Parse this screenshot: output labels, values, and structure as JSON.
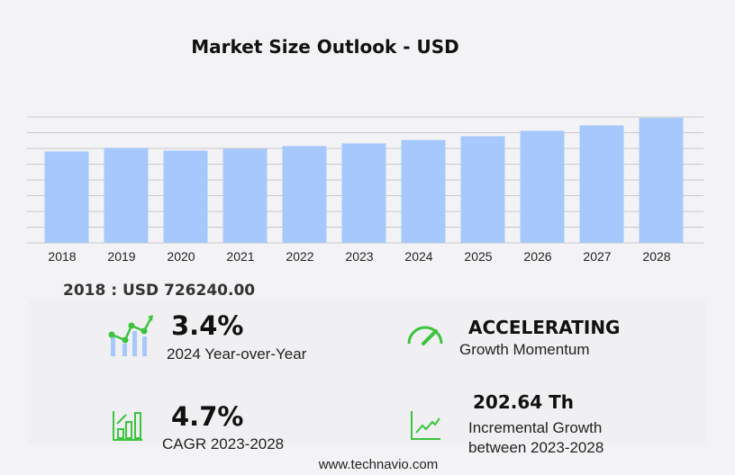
{
  "chart_data": {
    "type": "bar",
    "title": "Market Size Outlook  - USD",
    "categories": [
      "2018",
      "2019",
      "2020",
      "2021",
      "2022",
      "2023",
      "2024",
      "2025",
      "2026",
      "2027",
      "2028"
    ],
    "values": [
      726.24,
      755,
      733,
      748,
      769,
      790,
      817,
      847,
      890,
      933,
      993
    ],
    "ylim": [
      0,
      1000
    ],
    "grid": true,
    "bar_color": "#a7c8fd"
  },
  "base_label": "2018 : USD  726240.00",
  "stats": {
    "yoy_value": "3.4%",
    "yoy_label": "2024 Year-over-Year",
    "momentum_value": "ACCELERATING",
    "momentum_label": "Growth Momentum",
    "cagr_value": "4.7%",
    "cagr_label": "CAGR 2023-2028",
    "incr_value": "202.64 Th",
    "incr_label1": "Incremental Growth",
    "incr_label2": "between 2023-2028"
  },
  "colors": {
    "accent_green": "#3cc43c",
    "icon_blue": "#a7c8fd"
  },
  "footer": "www.technavio.com"
}
